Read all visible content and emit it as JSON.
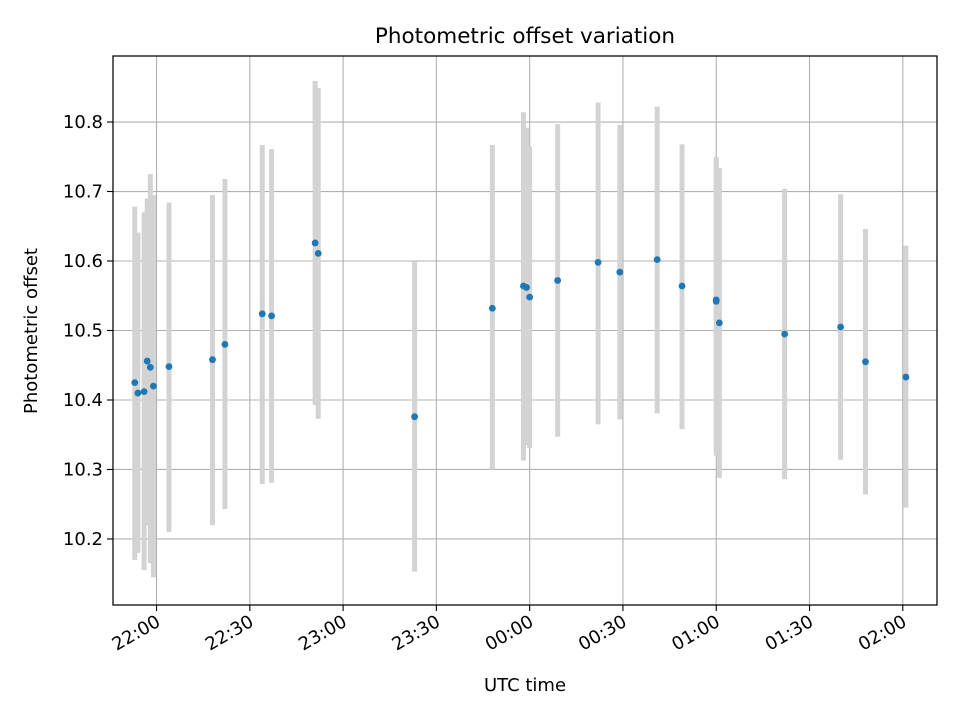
{
  "chart_data": {
    "type": "scatter",
    "title": "Photometric offset variation",
    "xlabel": "UTC time",
    "ylabel": "Photometric offset",
    "grid": true,
    "xlim": [
      "21:46",
      "02:11"
    ],
    "ylim": [
      10.105,
      10.895
    ],
    "xticks": [
      "22:00",
      "22:30",
      "23:00",
      "23:30",
      "00:00",
      "00:30",
      "01:00",
      "01:30",
      "02:00"
    ],
    "yticks": [
      10.2,
      10.3,
      10.4,
      10.5,
      10.6,
      10.7,
      10.8
    ],
    "marker_color": "#1f77b4",
    "errorbar_color": "#d3d3d3",
    "points": [
      {
        "time": "21:53",
        "offset": 10.425,
        "err_low": 10.17,
        "err_high": 10.678
      },
      {
        "time": "21:54",
        "offset": 10.41,
        "err_low": 10.18,
        "err_high": 10.641
      },
      {
        "time": "21:56",
        "offset": 10.412,
        "err_low": 10.155,
        "err_high": 10.67
      },
      {
        "time": "21:57",
        "offset": 10.456,
        "err_low": 10.22,
        "err_high": 10.69
      },
      {
        "time": "21:58",
        "offset": 10.447,
        "err_low": 10.165,
        "err_high": 10.725
      },
      {
        "time": "21:59",
        "offset": 10.42,
        "err_low": 10.145,
        "err_high": 10.695
      },
      {
        "time": "22:04",
        "offset": 10.448,
        "err_low": 10.21,
        "err_high": 10.684
      },
      {
        "time": "22:18",
        "offset": 10.458,
        "err_low": 10.22,
        "err_high": 10.695
      },
      {
        "time": "22:22",
        "offset": 10.48,
        "err_low": 10.243,
        "err_high": 10.718
      },
      {
        "time": "22:34",
        "offset": 10.524,
        "err_low": 10.279,
        "err_high": 10.767
      },
      {
        "time": "22:37",
        "offset": 10.521,
        "err_low": 10.281,
        "err_high": 10.761
      },
      {
        "time": "22:51",
        "offset": 10.626,
        "err_low": 10.393,
        "err_high": 10.859
      },
      {
        "time": "22:52",
        "offset": 10.611,
        "err_low": 10.373,
        "err_high": 10.849
      },
      {
        "time": "23:23",
        "offset": 10.376,
        "err_low": 10.153,
        "err_high": 10.599
      },
      {
        "time": "23:48",
        "offset": 10.532,
        "err_low": 10.3,
        "err_high": 10.767
      },
      {
        "time": "23:58",
        "offset": 10.564,
        "err_low": 10.313,
        "err_high": 10.814
      },
      {
        "time": "23:59",
        "offset": 10.562,
        "err_low": 10.335,
        "err_high": 10.792
      },
      {
        "time": "00:00",
        "offset": 10.548,
        "err_low": 10.331,
        "err_high": 10.765
      },
      {
        "time": "00:09",
        "offset": 10.572,
        "err_low": 10.347,
        "err_high": 10.797
      },
      {
        "time": "00:22",
        "offset": 10.598,
        "err_low": 10.365,
        "err_high": 10.828
      },
      {
        "time": "00:29",
        "offset": 10.584,
        "err_low": 10.372,
        "err_high": 10.796
      },
      {
        "time": "00:41",
        "offset": 10.602,
        "err_low": 10.381,
        "err_high": 10.822
      },
      {
        "time": "00:49",
        "offset": 10.564,
        "err_low": 10.358,
        "err_high": 10.768
      },
      {
        "time": "01:00",
        "offset": 10.542,
        "err_low": 10.335,
        "err_high": 10.75
      },
      {
        "time": "01:00",
        "offset": 10.544,
        "err_low": 10.32,
        "err_high": 10.745
      },
      {
        "time": "01:01",
        "offset": 10.511,
        "err_low": 10.288,
        "err_high": 10.734
      },
      {
        "time": "01:22",
        "offset": 10.495,
        "err_low": 10.286,
        "err_high": 10.704
      },
      {
        "time": "01:40",
        "offset": 10.505,
        "err_low": 10.314,
        "err_high": 10.696
      },
      {
        "time": "01:48",
        "offset": 10.455,
        "err_low": 10.264,
        "err_high": 10.646
      },
      {
        "time": "02:01",
        "offset": 10.433,
        "err_low": 10.245,
        "err_high": 10.622
      }
    ]
  }
}
